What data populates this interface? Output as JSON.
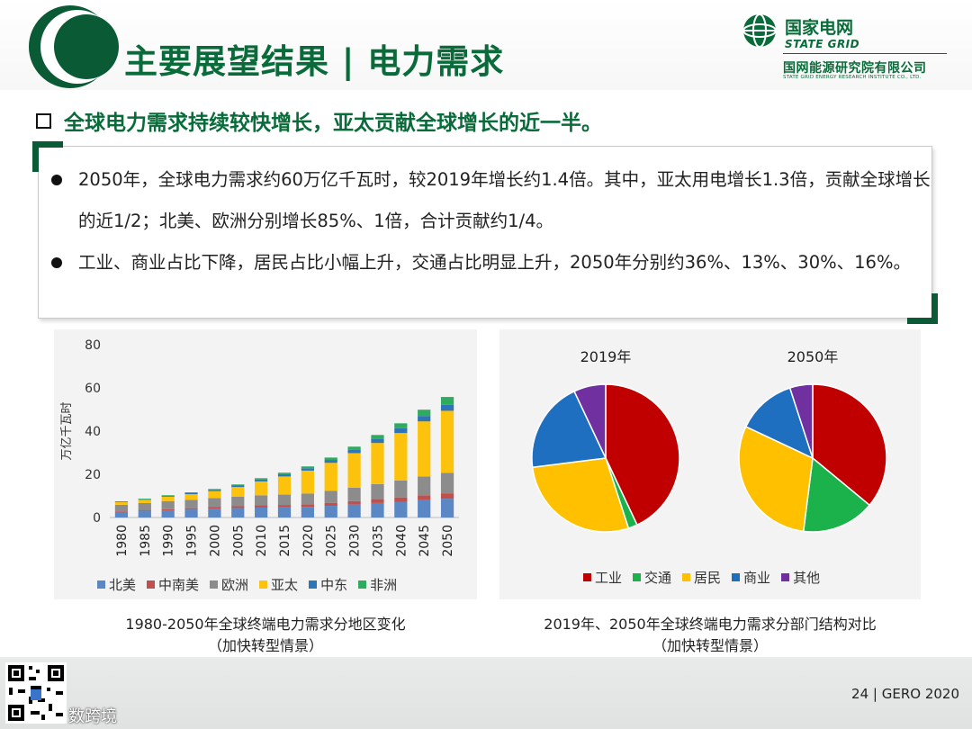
{
  "header": {
    "title": "主要展望结果 | 电力需求",
    "brand_cn": "国家电网",
    "brand_en": "STATE GRID",
    "institute_cn": "国网能源研究院有限公司",
    "institute_en": "STATE GRID ENERGY RESEARCH INSTITUTE CO., LTD."
  },
  "subtitle": "全球电力需求持续较快增长，亚太贡献全球增长的近一半。",
  "bullets": [
    "2050年，全球电力需求约60万亿千瓦时，较2019年增长约1.4倍。其中，亚太用电增长1.3倍，贡献全球增长的近1/2；北美、欧洲分别增长85%、1倍，合计贡献约1/4。",
    "工业、商业占比下降，居民占比小幅上升，交通占比明显上升，2050年分别约36%、13%、30%、16%。"
  ],
  "colors": {
    "brand_green": "#0a6b3a",
    "north_america": "#5b87c5",
    "central_south_america": "#c0504d",
    "europe": "#8c8c8c",
    "asia_pacific": "#fdc20c",
    "middle_east": "#2e75b6",
    "africa": "#2eab5e",
    "industry": "#c00000",
    "transport": "#1bb24b",
    "residential": "#ffc000",
    "commercial": "#1f6fc1",
    "other": "#7030a0"
  },
  "chart_data": [
    {
      "type": "bar",
      "stacked": true,
      "ylabel": "万亿千瓦时",
      "ylim": [
        0,
        80
      ],
      "yticks": [
        0,
        20,
        40,
        60,
        80
      ],
      "categories": [
        "1980",
        "1985",
        "1990",
        "1995",
        "2000",
        "2005",
        "2010",
        "2015",
        "2020",
        "2025",
        "2030",
        "2035",
        "2040",
        "2045",
        "2050"
      ],
      "series": [
        {
          "name": "北美",
          "color_key": "north_america",
          "values": [
            2.6,
            2.9,
            3.3,
            3.7,
            4.1,
            4.4,
            4.6,
            4.7,
            4.9,
            5.4,
            6.0,
            6.7,
            7.3,
            8.0,
            8.7
          ]
        },
        {
          "name": "中南美",
          "color_key": "central_south_america",
          "values": [
            0.3,
            0.4,
            0.5,
            0.6,
            0.7,
            0.8,
            1.0,
            1.1,
            1.2,
            1.4,
            1.6,
            1.8,
            2.0,
            2.3,
            2.5
          ]
        },
        {
          "name": "欧洲",
          "color_key": "europe",
          "values": [
            3.0,
            3.4,
            3.8,
            3.9,
            4.2,
            4.5,
            4.7,
            4.8,
            5.0,
            5.5,
            6.2,
            7.0,
            7.8,
            8.7,
            9.5
          ]
        },
        {
          "name": "亚太",
          "color_key": "asia_pacific",
          "values": [
            1.2,
            1.5,
            2.0,
            2.6,
            3.2,
            4.4,
            6.4,
            8.4,
            10.6,
            13.0,
            16.0,
            19.0,
            22.0,
            25.5,
            28.7
          ]
        },
        {
          "name": "中东",
          "color_key": "middle_east",
          "values": [
            0.15,
            0.25,
            0.35,
            0.45,
            0.55,
            0.7,
            0.9,
            1.05,
            1.1,
            1.35,
            1.6,
            1.9,
            2.2,
            2.5,
            2.8
          ]
        },
        {
          "name": "非洲",
          "color_key": "africa",
          "values": [
            0.25,
            0.3,
            0.35,
            0.4,
            0.45,
            0.5,
            0.6,
            0.7,
            0.85,
            1.1,
            1.4,
            1.8,
            2.3,
            2.9,
            3.6
          ]
        }
      ],
      "legend": [
        "北美",
        "中南美",
        "欧洲",
        "亚太",
        "中东",
        "非洲"
      ],
      "legend_placement": "bottom",
      "caption": [
        "1980-2050年全球终端电力需求分地区变化",
        "（加快转型情景）"
      ]
    },
    {
      "type": "pie",
      "title": "2019年",
      "slices": [
        {
          "name": "工业",
          "color_key": "industry",
          "value": 43
        },
        {
          "name": "交通",
          "color_key": "transport",
          "value": 2
        },
        {
          "name": "居民",
          "color_key": "residential",
          "value": 28
        },
        {
          "name": "商业",
          "color_key": "commercial",
          "value": 20
        },
        {
          "name": "其他",
          "color_key": "other",
          "value": 7
        }
      ]
    },
    {
      "type": "pie",
      "title": "2050年",
      "slices": [
        {
          "name": "工业",
          "color_key": "industry",
          "value": 36
        },
        {
          "name": "交通",
          "color_key": "transport",
          "value": 16
        },
        {
          "name": "居民",
          "color_key": "residential",
          "value": 30
        },
        {
          "name": "商业",
          "color_key": "commercial",
          "value": 13
        },
        {
          "name": "其他",
          "color_key": "other",
          "value": 5
        }
      ],
      "legend": [
        "工业",
        "交通",
        "居民",
        "商业",
        "其他"
      ],
      "legend_placement": "bottom",
      "caption": [
        "2019年、2050年全球终端电力需求分部门结构对比",
        "（加快转型情景）"
      ]
    }
  ],
  "footer": {
    "page": "24 | GERO 2020",
    "qr_label": "数跨境"
  }
}
